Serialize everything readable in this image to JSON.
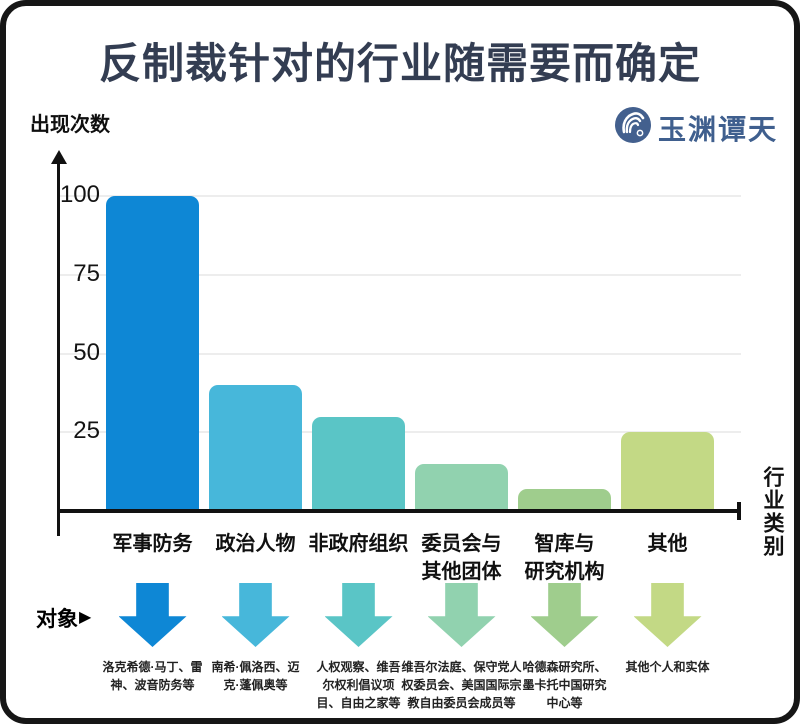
{
  "title": "反制裁针对的行业随需要而确定",
  "logo": {
    "name": "玉渊谭天"
  },
  "chart_data": {
    "type": "bar",
    "title": "反制裁针对的行业随需要而确定",
    "ylabel": "出现次数",
    "xlabel": "行业类别",
    "ylim": [
      0,
      100
    ],
    "yticks": [
      25,
      50,
      75,
      100
    ],
    "grid": true,
    "legend": false,
    "categories": [
      "军事防务",
      "政治人物",
      "非政府组织",
      "委员会与\n其他团体",
      "智库与\n研究机构",
      "其他"
    ],
    "values": [
      100,
      40,
      30,
      15,
      7,
      25
    ],
    "bar_colors": [
      "#0e87d5",
      "#47b7da",
      "#5ac5c6",
      "#91d2af",
      "#9fcd8d",
      "#c3d985"
    ]
  },
  "targets": {
    "label": "对象",
    "pointer": "▶",
    "items": [
      "洛克希德·马丁、雷神、波音防务等",
      "南希·佩洛西、迈克·蓬佩奥等",
      "人权观察、维吾尔权利倡议项目、自由之家等",
      "维吾尔法庭、保守党人权委员会、美国国际宗教自由委员会成员等",
      "哈德森研究所、墨卡托中国研究中心等",
      "其他个人和实体"
    ]
  }
}
